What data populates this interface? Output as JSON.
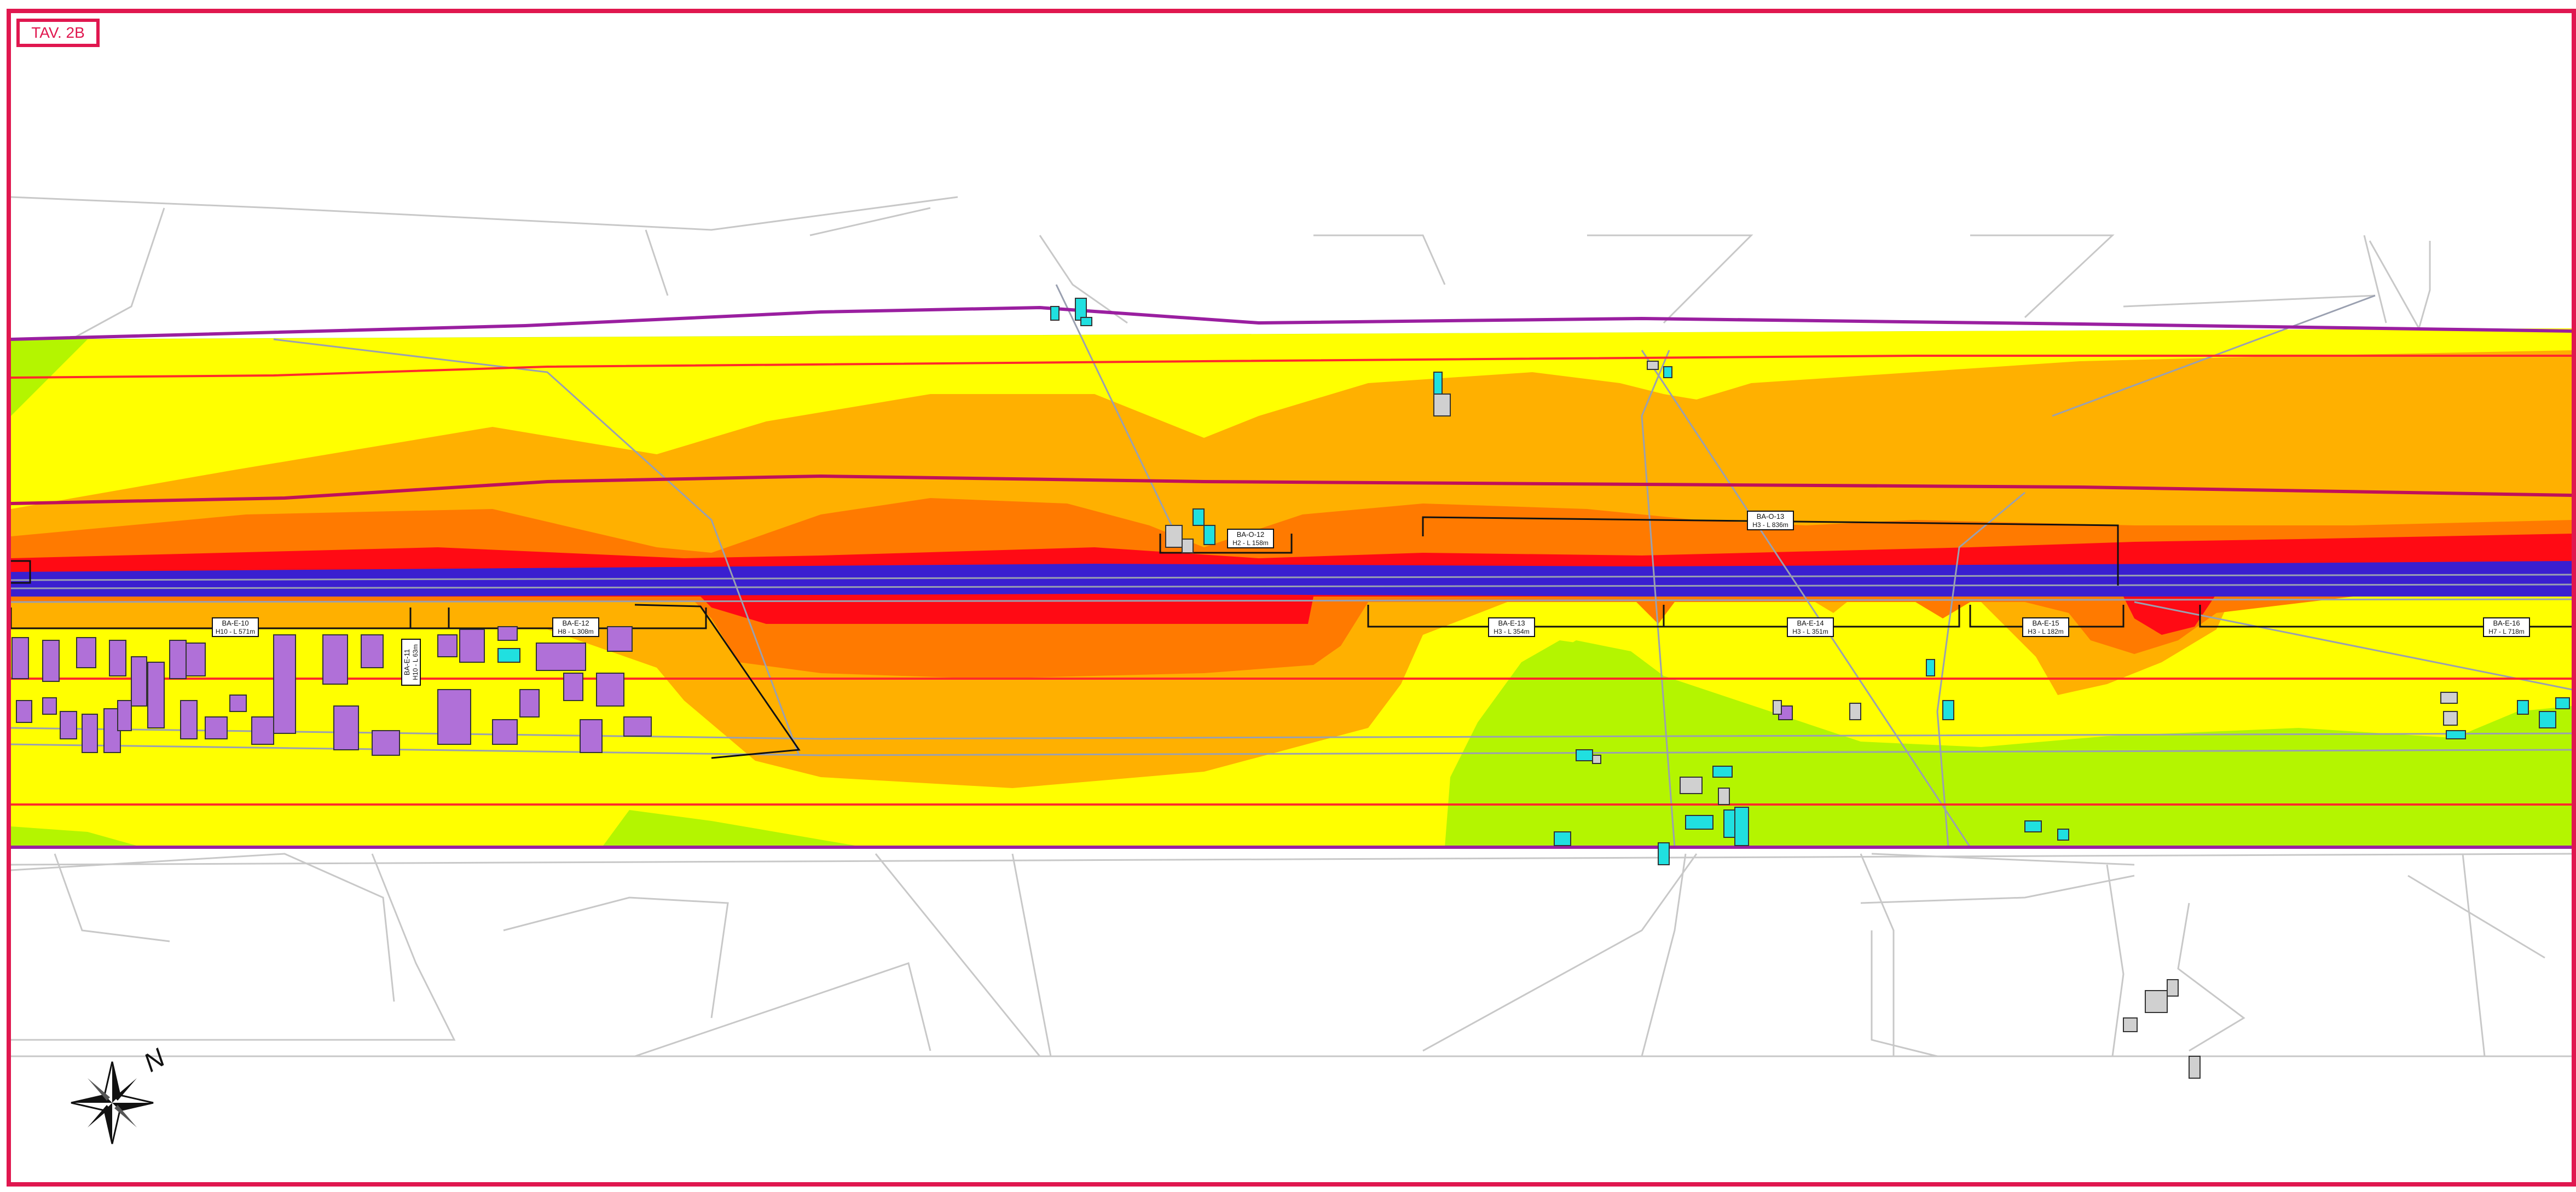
{
  "sheet": {
    "title": "TAV. 2B"
  },
  "colors": {
    "frame": "#e0174f",
    "zone_lime": "#b4f500",
    "zone_yellow": "#ffff00",
    "zone_orange": "#ffb000",
    "zone_dark_orange": "#ff7a00",
    "zone_red": "#ff0a14",
    "zone_blue": "#3a1fd0",
    "building_receptor": "#b070d8",
    "building_other": "#20e0e0",
    "band_line": "#9a1fa0",
    "offset_line": "#ff2a2a"
  },
  "barriers": [
    {
      "id": "BA-E-10",
      "spec": "H10 - L 571m"
    },
    {
      "id": "BA-E-11",
      "spec": "H10 - L 63m"
    },
    {
      "id": "BA-E-12",
      "spec": "H8 - L 308m"
    },
    {
      "id": "BA-O-12",
      "spec": "H2 - L 158m"
    },
    {
      "id": "BA-E-13",
      "spec": "H3 - L 354m"
    },
    {
      "id": "BA-O-13",
      "spec": "H3 - L 836m"
    },
    {
      "id": "BA-E-14",
      "spec": "H3 - L 351m"
    },
    {
      "id": "BA-E-15",
      "spec": "H3 - L 182m"
    },
    {
      "id": "BA-E-16",
      "spec": "H7 - L 718m"
    }
  ],
  "compass": {
    "north_label": "N",
    "icon": "north-arrow-compass-rose"
  }
}
